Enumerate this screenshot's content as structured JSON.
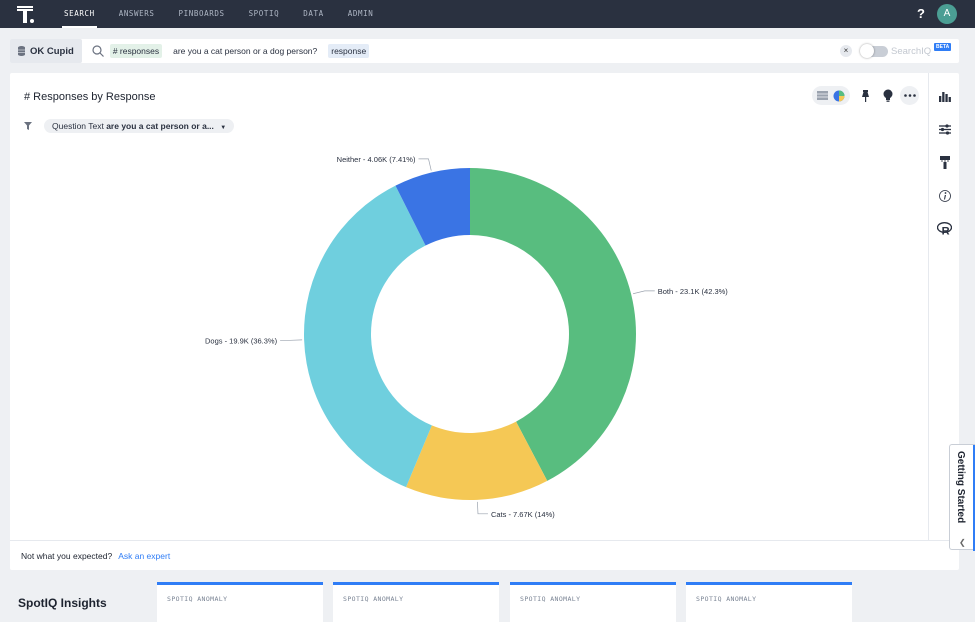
{
  "nav": {
    "items": [
      {
        "label": "SEARCH",
        "active": true
      },
      {
        "label": "ANSWERS"
      },
      {
        "label": "PINBOARDS"
      },
      {
        "label": "SPOTIQ"
      },
      {
        "label": "DATA"
      },
      {
        "label": "ADMIN"
      }
    ],
    "avatar_letter": "A",
    "help_symbol": "?"
  },
  "search": {
    "source": "OK Cupid",
    "tokens": [
      "# responses",
      "are you a cat person or a dog person?",
      "response"
    ],
    "clear_symbol": "×",
    "spotiq_label": "SearchIQ",
    "beta": "BETA"
  },
  "answer": {
    "title": "# Responses by Response",
    "filter_prefix": "Question Text",
    "filter_value": "are you a cat person or a...",
    "footer_text": "Not what you expected?",
    "footer_link": "Ask an expert"
  },
  "chart_data": {
    "type": "pie",
    "donut": true,
    "slices": [
      {
        "label": "Both - 23.1K (42.3%)",
        "value": 42.3,
        "color": "#58bd7f"
      },
      {
        "label": "Cats - 7.67K (14%)",
        "value": 14.0,
        "color": "#f5c855"
      },
      {
        "label": "Dogs - 19.9K (36.3%)",
        "value": 36.3,
        "color": "#6fcfde"
      },
      {
        "label": "Neither - 4.06K (7.41%)",
        "value": 7.41,
        "color": "#3a74e4"
      }
    ]
  },
  "getting_started": {
    "label": "Getting Started"
  },
  "spotiq": {
    "title": "SpotIQ Insights",
    "cards": [
      "SPOTIQ ANOMALY",
      "SPOTIQ ANOMALY",
      "SPOTIQ ANOMALY",
      "SPOTIQ ANOMALY"
    ]
  }
}
